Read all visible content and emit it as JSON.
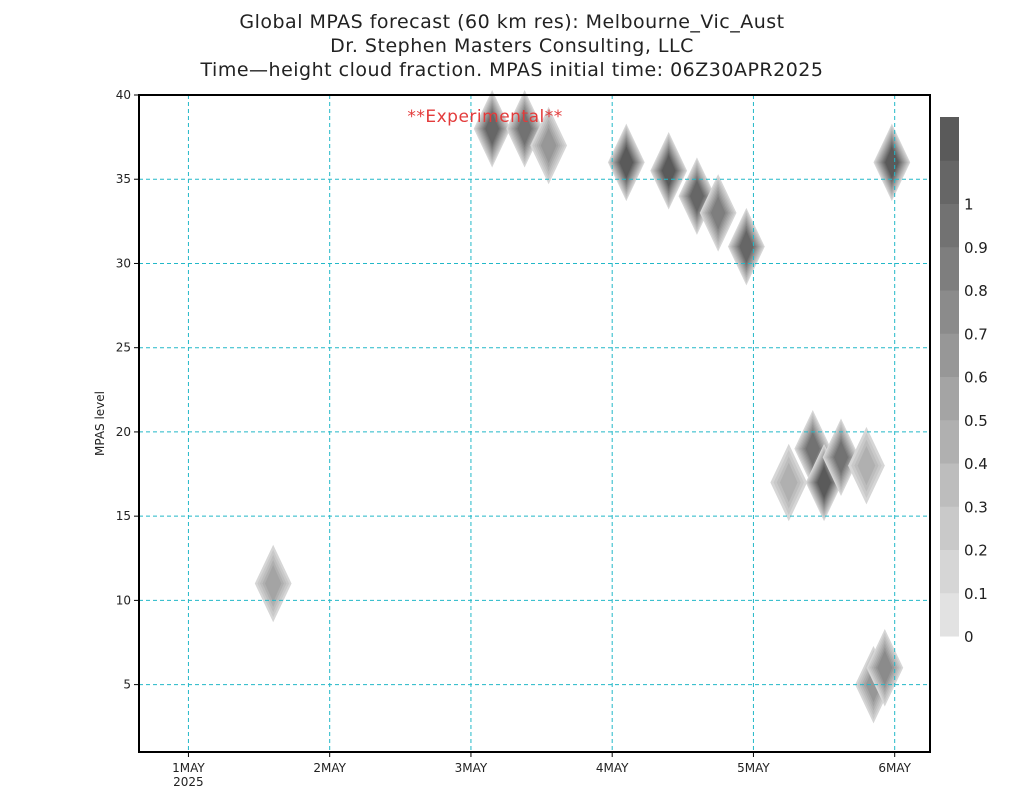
{
  "titles": {
    "line1": "Global MPAS forecast (60 km res): Melbourne_Vic_Aust",
    "line2": "Dr. Stephen Masters Consulting, LLC",
    "line3": "Time—height cloud fraction.   MPAS initial time: 06Z30APR2025"
  },
  "chart_data": {
    "type": "heatmap",
    "annotation": "**Experimental**",
    "ylabel": "MPAS level",
    "xlabel": "",
    "ylim": [
      1,
      40
    ],
    "xlim_days": [
      0.65,
      6.25
    ],
    "y_ticks": [
      5,
      10,
      15,
      20,
      25,
      30,
      35,
      40
    ],
    "x_ticks": [
      {
        "day": 1,
        "label": "1MAY",
        "sublabel": "2025"
      },
      {
        "day": 2,
        "label": "2MAY",
        "sublabel": ""
      },
      {
        "day": 3,
        "label": "3MAY",
        "sublabel": ""
      },
      {
        "day": 4,
        "label": "4MAY",
        "sublabel": ""
      },
      {
        "day": 5,
        "label": "5MAY",
        "sublabel": ""
      },
      {
        "day": 6,
        "label": "6MAY",
        "sublabel": ""
      }
    ],
    "grid": true,
    "grid_color": "#22b8c8",
    "colorbar": {
      "levels": [
        "0",
        "0.1",
        "0.2",
        "0.3",
        "0.4",
        "0.5",
        "0.6",
        "0.7",
        "0.8",
        "0.9",
        "1"
      ],
      "colors": [
        "#e2e2e2",
        "#d6d6d6",
        "#c9c9c9",
        "#bdbdbd",
        "#b0b0b0",
        "#a4a4a4",
        "#979797",
        "#8b8b8b",
        "#7e7e7e",
        "#727272",
        "#666666",
        "#5a5a5a"
      ]
    },
    "cloud_regions": [
      {
        "day": 1.6,
        "level": 11,
        "fraction": 0.35
      },
      {
        "day": 3.15,
        "level": 38,
        "fraction": 0.85
      },
      {
        "day": 3.38,
        "level": 38,
        "fraction": 0.8
      },
      {
        "day": 3.55,
        "level": 37,
        "fraction": 0.5
      },
      {
        "day": 4.1,
        "level": 36,
        "fraction": 0.95
      },
      {
        "day": 4.4,
        "level": 35.5,
        "fraction": 0.95
      },
      {
        "day": 4.6,
        "level": 34,
        "fraction": 0.85
      },
      {
        "day": 4.75,
        "level": 33,
        "fraction": 0.7
      },
      {
        "day": 4.95,
        "level": 31,
        "fraction": 0.9
      },
      {
        "day": 5.98,
        "level": 36,
        "fraction": 0.95
      },
      {
        "day": 5.25,
        "level": 17,
        "fraction": 0.3
      },
      {
        "day": 5.42,
        "level": 19,
        "fraction": 0.75
      },
      {
        "day": 5.5,
        "level": 17,
        "fraction": 0.95
      },
      {
        "day": 5.62,
        "level": 18.5,
        "fraction": 0.8
      },
      {
        "day": 5.8,
        "level": 18,
        "fraction": 0.3
      },
      {
        "day": 5.85,
        "level": 5,
        "fraction": 0.5
      },
      {
        "day": 5.93,
        "level": 6,
        "fraction": 0.6
      }
    ]
  }
}
